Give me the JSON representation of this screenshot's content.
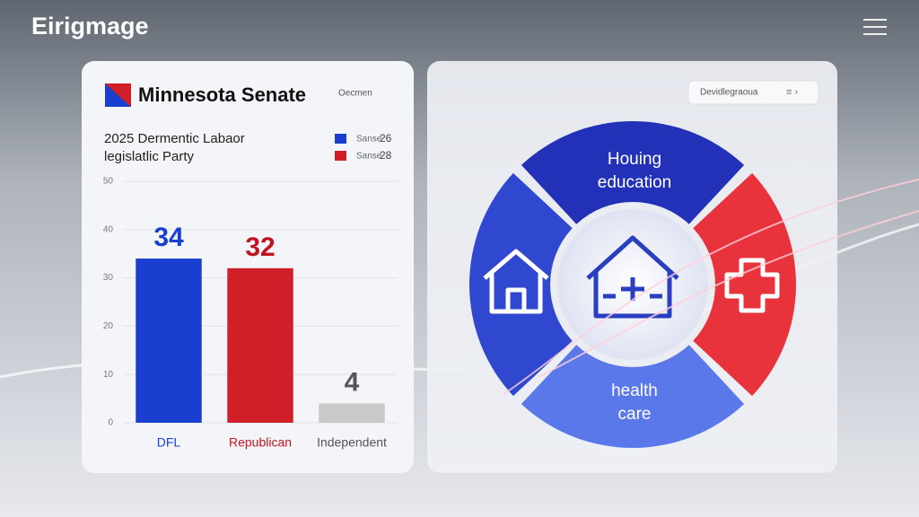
{
  "app_title": "Eirigmage",
  "chart_data": {
    "type": "bar",
    "title": "Minnesota Senate",
    "header_note": "Oecmen",
    "subtitle": [
      "2025 Dermentic Labaor",
      "legislatlic Party"
    ],
    "legend": [
      {
        "name": "Sanse",
        "value": 26,
        "color": "#1a3fd0"
      },
      {
        "name": "Sanse",
        "value": 28,
        "color": "#d11f2a"
      }
    ],
    "categories": [
      "DFL",
      "Republican",
      "Independent"
    ],
    "values": [
      34,
      32,
      4
    ],
    "colors": [
      "#1a3fd0",
      "#d11f2a",
      "#c9c9c9"
    ],
    "label_colors": [
      "#1a3fd0",
      "#c0141f",
      "#555555"
    ],
    "ylim": [
      0,
      50
    ],
    "yticks": [
      0,
      10,
      20,
      30,
      40,
      50
    ],
    "grid": true
  },
  "right_panel": {
    "dropdown": "Devidlegraoua",
    "segments": [
      {
        "label": [
          "Houing",
          "education"
        ]
      },
      {
        "label": [
          "health",
          "care"
        ]
      }
    ]
  }
}
